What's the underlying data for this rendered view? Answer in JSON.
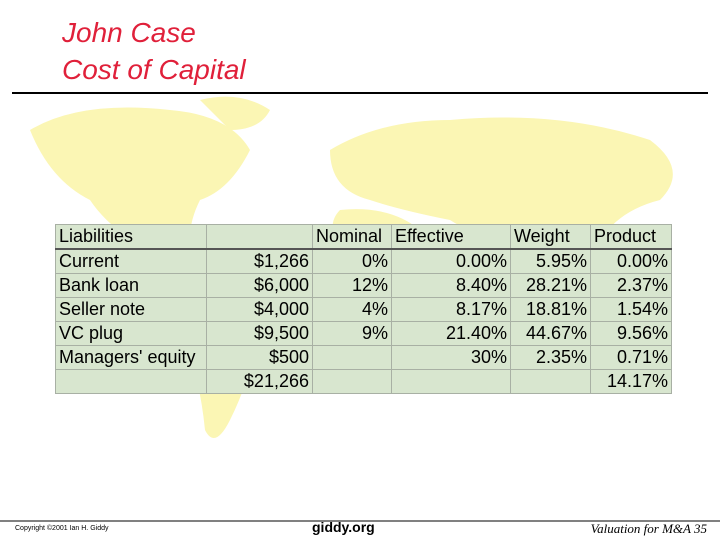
{
  "header": {
    "title_lines": [
      "John Case",
      "Cost of Capital"
    ]
  },
  "table": {
    "rows": [
      [
        "Liabilities",
        null,
        "Nominal",
        "Effective",
        "Weight",
        "Product"
      ],
      [
        "Current",
        "$1,266",
        "0%",
        "0.00%",
        "5.95%",
        "0.00%"
      ],
      [
        "Bank loan",
        "$6,000",
        "12%",
        "8.40%",
        "28.21%",
        "2.37%"
      ],
      [
        "Seller note",
        "$4,000",
        "4%",
        "8.17%",
        "18.81%",
        "1.54%"
      ],
      [
        "VC plug",
        "$9,500",
        "9%",
        "21.40%",
        "44.67%",
        "9.56%"
      ],
      [
        "Managers' equity",
        "$500",
        null,
        "30%",
        "2.35%",
        "0.71%"
      ],
      [
        null,
        "$21,266",
        null,
        null,
        null,
        "14.17%"
      ]
    ]
  },
  "footer": {
    "copyright": "Copyright ©2001 Ian H. Giddy",
    "site": "giddy.org",
    "slide_label": "Valuation for M&A 35"
  }
}
